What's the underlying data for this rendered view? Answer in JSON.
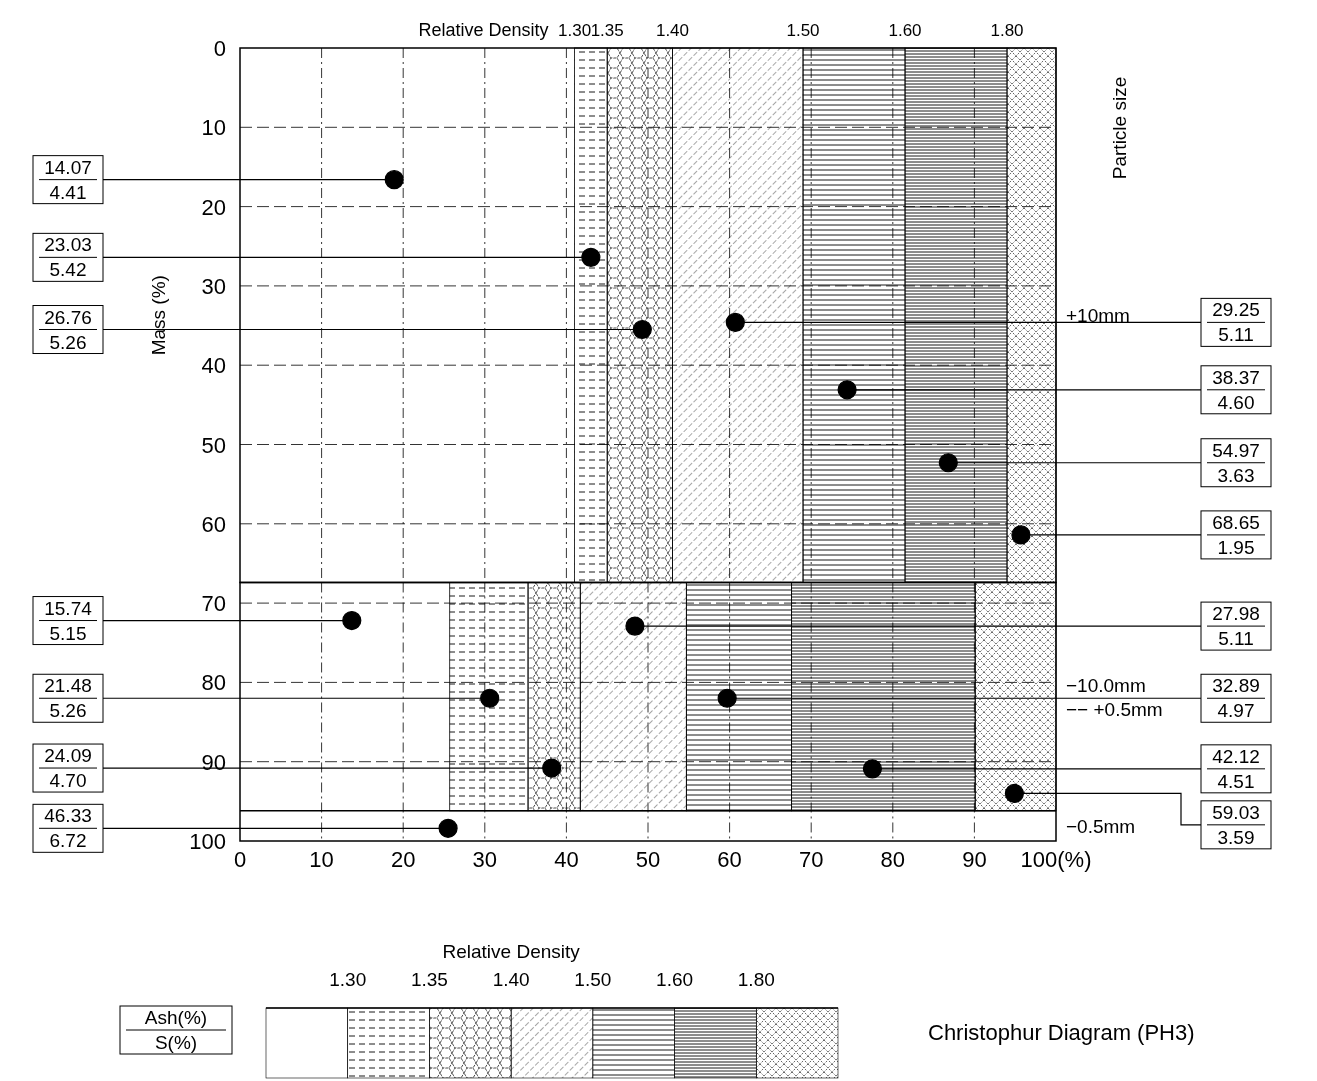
{
  "chart_data": [
    {
      "type": "scatter",
      "legend_title": "Particle size",
      "y2label": "+10mm",
      "ylabel": "Mass (%)",
      "xlim": [
        0,
        100
      ],
      "ylim": [
        67.4,
        0
      ],
      "xticks": [
        0,
        10,
        20,
        30,
        40,
        50,
        60,
        70,
        80,
        90,
        100
      ],
      "yticks": [
        0,
        10,
        20,
        30,
        40,
        50,
        60
      ],
      "tick_labels": "y",
      "grid": true,
      "marker": "circle",
      "bands": [
        {
          "axis": "x",
          "from": 41,
          "to": 45,
          "label": "1.30"
        },
        {
          "axis": "x",
          "from": 45,
          "to": 53,
          "label": "1.35"
        },
        {
          "axis": "x",
          "from": 53,
          "to": 69,
          "label": "1.40"
        },
        {
          "axis": "x",
          "from": 69,
          "to": 81.5,
          "label": "1.50"
        },
        {
          "axis": "x",
          "from": 81.5,
          "to": 94,
          "label": "1.60"
        },
        {
          "axis": "x",
          "from": 94,
          "to": 100,
          "label": "1.80"
        }
      ],
      "series": [
        {
          "color": "#000000",
          "x": [
            18.9,
            43.0,
            49.3,
            60.7,
            74.4,
            86.8,
            95.7
          ],
          "values": [
            16.6,
            26.4,
            35.5,
            34.6,
            43.1,
            52.3,
            61.4
          ]
        }
      ],
      "annotations": [
        "Relative Density",
        {
          "text": "14.07",
          "x": 18.9,
          "y": 16.6
        },
        {
          "text": "4.41",
          "x": 18.9,
          "y": 16.6
        },
        {
          "text": "23.03",
          "x": 43.0,
          "y": 26.4
        },
        {
          "text": "5.42",
          "x": 43.0,
          "y": 26.4
        },
        {
          "text": "26.76",
          "x": 49.3,
          "y": 35.5
        },
        {
          "text": "5.26",
          "x": 49.3,
          "y": 35.5
        },
        {
          "text": "29.25",
          "x": 60.7,
          "y": 34.6
        },
        {
          "text": "5.11",
          "x": 60.7,
          "y": 34.6
        },
        {
          "text": "38.37",
          "x": 74.4,
          "y": 43.1
        },
        {
          "text": "4.60",
          "x": 74.4,
          "y": 43.1
        },
        {
          "text": "54.97",
          "x": 86.8,
          "y": 52.3
        },
        {
          "text": "3.63",
          "x": 86.8,
          "y": 52.3
        },
        {
          "text": "68.65",
          "x": 95.7,
          "y": 61.4
        },
        {
          "text": "1.95",
          "x": 95.7,
          "y": 61.4
        }
      ]
    },
    {
      "type": "scatter",
      "y2label": "−10.0mm −− +0.5mm",
      "xlim": [
        0,
        100
      ],
      "ylim": [
        100,
        67.4
      ],
      "xticks": [
        0,
        10,
        20,
        30,
        40,
        50,
        60,
        70,
        80,
        90,
        {
          "value": 100,
          "label": "100(%)"
        }
      ],
      "yticks": [
        70,
        80,
        90,
        100
      ],
      "grid": true,
      "marker": "circle",
      "ref_lines": [
        {
          "axis": "y",
          "value": 96.2,
          "label": "−0.5mm"
        }
      ],
      "bands": [
        {
          "axis": "x",
          "from": 25.7,
          "to": 35.3
        },
        {
          "axis": "x",
          "from": 35.3,
          "to": 41.7
        },
        {
          "axis": "x",
          "from": 41.7,
          "to": 54.7
        },
        {
          "axis": "x",
          "from": 54.7,
          "to": 67.6
        },
        {
          "axis": "x",
          "from": 67.6,
          "to": 90.1
        },
        {
          "axis": "x",
          "from": 90.1,
          "to": 100
        }
      ],
      "series": [
        {
          "color": "#000000",
          "x": [
            13.7,
            30.6,
            38.2,
            48.4,
            59.7,
            77.5,
            94.9,
            25.5
          ],
          "values": [
            72.2,
            82,
            90.8,
            72.9,
            82,
            90.9,
            94,
            98.4
          ]
        }
      ],
      "annotations": [
        {
          "text": "15.74",
          "x": 13.7,
          "y": 72.2
        },
        {
          "text": "5.15",
          "x": 13.7,
          "y": 72.2
        },
        {
          "text": "21.48",
          "x": 30.6,
          "y": 82
        },
        {
          "text": "5.26",
          "x": 30.6,
          "y": 82
        },
        {
          "text": "24.09",
          "x": 38.2,
          "y": 90.8
        },
        {
          "text": "4.70",
          "x": 38.2,
          "y": 90.8
        },
        {
          "text": "46.33",
          "x": 25.5,
          "y": 98.4
        },
        {
          "text": "6.72",
          "x": 25.5,
          "y": 98.4
        },
        {
          "text": "27.98",
          "x": 48.4,
          "y": 72.9
        },
        {
          "text": "5.11",
          "x": 48.4,
          "y": 72.9
        },
        {
          "text": "32.89",
          "x": 59.7,
          "y": 82
        },
        {
          "text": "4.97",
          "x": 59.7,
          "y": 82
        },
        {
          "text": "42.12",
          "x": 77.5,
          "y": 90.9
        },
        {
          "text": "4.51",
          "x": 77.5,
          "y": 90.9
        },
        {
          "text": "59.03",
          "x": 94.9,
          "y": 94
        },
        {
          "text": "3.59",
          "x": 94.9,
          "y": 94
        }
      ]
    },
    {
      "type": "other",
      "title": "Christophur Diagram (PH3)",
      "annotations": [
        "Relative Density",
        "1.30",
        "1.35",
        "1.40",
        "1.50",
        "1.60",
        "1.80",
        "Ash(%)",
        "S(%)"
      ]
    }
  ]
}
